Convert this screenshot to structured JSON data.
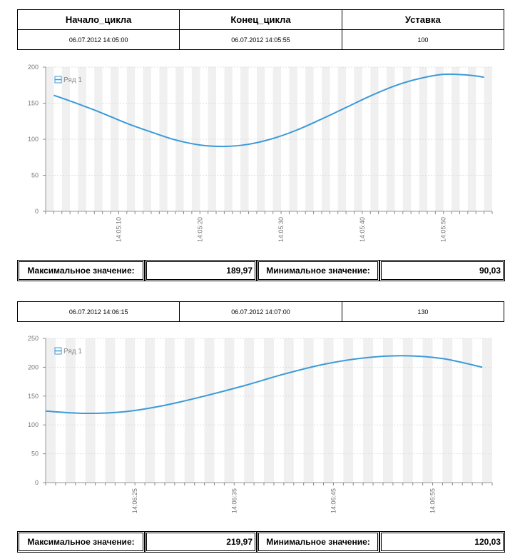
{
  "table1": {
    "headers": [
      "Начало_цикла",
      "Конец_цикла",
      "Уставка"
    ],
    "values": [
      "06.07.2012 14:05:00",
      "06.07.2012 14:05:55",
      "100"
    ]
  },
  "table2": {
    "values": [
      "06.07.2012 14:06:15",
      "06.07.2012 14:07:00",
      "130"
    ]
  },
  "stats1": {
    "max_label": "Максимальное значение:",
    "max_value": "189,97",
    "min_label": "Минимальное значение:",
    "min_value": "90,03"
  },
  "stats2": {
    "max_label": "Максимальное значение:",
    "max_value": "219,97",
    "min_label": "Минимальное значение:",
    "min_value": "120,03"
  },
  "colors": {
    "series": "#3a9ad9",
    "grid": "#dddddd",
    "stripe": "#f0f0f0",
    "axis_text": "#777777"
  },
  "chart_data": [
    {
      "type": "line",
      "legend": [
        "Ряд 1"
      ],
      "legend_position": "top-left",
      "ylim": [
        0,
        200
      ],
      "yticks": [
        0,
        50,
        100,
        150,
        200
      ],
      "xlim": [
        "14:05:01",
        "14:05:56"
      ],
      "xticks": [
        "14:05:10",
        "14:05:20",
        "14:05:30",
        "14:05:40",
        "14:05:50"
      ],
      "series": [
        {
          "name": "Ряд 1",
          "x": [
            "14:05:02",
            "14:05:05",
            "14:05:08",
            "14:05:11",
            "14:05:14",
            "14:05:17",
            "14:05:20",
            "14:05:23",
            "14:05:26",
            "14:05:29",
            "14:05:32",
            "14:05:35",
            "14:05:38",
            "14:05:41",
            "14:05:44",
            "14:05:47",
            "14:05:50",
            "14:05:53",
            "14:05:55"
          ],
          "y": [
            161,
            149,
            136,
            122,
            110,
            99,
            92,
            90,
            93,
            101,
            113,
            128,
            144,
            160,
            174,
            184,
            189.97,
            189,
            186
          ]
        }
      ]
    },
    {
      "type": "line",
      "legend": [
        "Ряд 1"
      ],
      "legend_position": "top-left",
      "ylim": [
        0,
        250
      ],
      "yticks": [
        0,
        50,
        100,
        150,
        200,
        250
      ],
      "xlim": [
        "14:06:16",
        "14:07:01"
      ],
      "xticks": [
        "14:06:25",
        "14:06:35",
        "14:06:45",
        "14:06:55"
      ],
      "series": [
        {
          "name": "Ряд 1",
          "x": [
            "14:06:16",
            "14:06:20",
            "14:06:24",
            "14:06:28",
            "14:06:32",
            "14:06:36",
            "14:06:40",
            "14:06:44",
            "14:06:48",
            "14:06:52",
            "14:06:56",
            "14:07:00"
          ],
          "y": [
            124,
            120.03,
            123,
            134,
            150,
            168,
            188,
            205,
            216,
            219.97,
            215,
            200
          ]
        }
      ]
    }
  ]
}
